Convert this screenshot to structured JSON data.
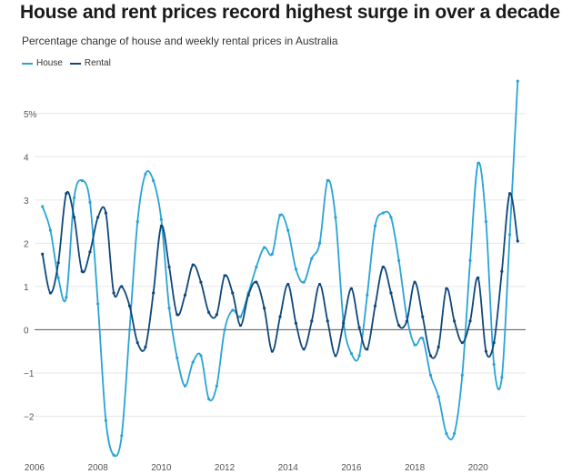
{
  "chart_data": {
    "type": "line",
    "title": "House and rent prices record highest surge in over a decade",
    "subtitle": "Percentage change of house and weekly rental prices in Australia",
    "xlabel": "",
    "ylabel": "",
    "xlim": [
      2006,
      2021.5
    ],
    "ylim": [
      -3,
      5.9
    ],
    "grid": true,
    "legend_position": "top-left",
    "y_ticks": [
      -2,
      -1,
      0,
      1,
      2,
      3,
      4,
      5
    ],
    "y_tick_labels": [
      "−2",
      "−1",
      "0",
      "1",
      "2",
      "3",
      "4",
      "5%"
    ],
    "x_ticks": [
      2006,
      2008,
      2010,
      2012,
      2014,
      2016,
      2018,
      2020
    ],
    "x_tick_labels": [
      "2006",
      "2008",
      "2010",
      "2012",
      "2014",
      "2016",
      "2018",
      "2020"
    ],
    "colors": {
      "house": "#2aa3d6",
      "rental": "#10487a",
      "zero": "#555555",
      "grid": "#e6e6e6"
    },
    "series": [
      {
        "name": "House",
        "x": [
          2006.25,
          2006.5,
          2006.75,
          2007.0,
          2007.25,
          2007.5,
          2007.75,
          2008.0,
          2008.25,
          2008.5,
          2008.75,
          2009.0,
          2009.25,
          2009.5,
          2009.75,
          2010.0,
          2010.25,
          2010.5,
          2010.75,
          2011.0,
          2011.25,
          2011.5,
          2011.75,
          2012.0,
          2012.25,
          2012.5,
          2012.75,
          2013.0,
          2013.25,
          2013.5,
          2013.75,
          2014.0,
          2014.25,
          2014.5,
          2014.75,
          2015.0,
          2015.25,
          2015.5,
          2015.75,
          2016.0,
          2016.25,
          2016.5,
          2016.75,
          2017.0,
          2017.25,
          2017.5,
          2017.75,
          2018.0,
          2018.25,
          2018.5,
          2018.75,
          2019.0,
          2019.25,
          2019.5,
          2019.75,
          2020.0,
          2020.25,
          2020.5,
          2020.75,
          2021.0,
          2021.25
        ],
        "values": [
          2.85,
          2.3,
          1.2,
          0.75,
          3.05,
          3.45,
          2.95,
          0.6,
          -2.1,
          -2.9,
          -2.45,
          0.0,
          2.5,
          3.6,
          3.45,
          2.55,
          0.5,
          -0.65,
          -1.3,
          -0.75,
          -0.6,
          -1.6,
          -1.3,
          0.0,
          0.45,
          0.3,
          0.85,
          1.45,
          1.9,
          1.75,
          2.65,
          2.3,
          1.4,
          1.1,
          1.65,
          2.0,
          3.45,
          2.6,
          0.2,
          -0.55,
          -0.6,
          0.8,
          2.4,
          2.7,
          2.6,
          1.6,
          0.3,
          -0.35,
          -0.2,
          -1.05,
          -1.55,
          -2.4,
          -2.4,
          -1.05,
          1.6,
          3.85,
          2.5,
          -0.8,
          -1.1,
          2.2,
          5.75
        ]
      },
      {
        "name": "Rental",
        "x": [
          2006.25,
          2006.5,
          2006.75,
          2007.0,
          2007.25,
          2007.5,
          2007.75,
          2008.0,
          2008.25,
          2008.5,
          2008.75,
          2009.0,
          2009.25,
          2009.5,
          2009.75,
          2010.0,
          2010.25,
          2010.5,
          2010.75,
          2011.0,
          2011.25,
          2011.5,
          2011.75,
          2012.0,
          2012.25,
          2012.5,
          2012.75,
          2013.0,
          2013.25,
          2013.5,
          2013.75,
          2014.0,
          2014.25,
          2014.5,
          2014.75,
          2015.0,
          2015.25,
          2015.5,
          2015.75,
          2016.0,
          2016.25,
          2016.5,
          2016.75,
          2017.0,
          2017.25,
          2017.5,
          2017.75,
          2018.0,
          2018.25,
          2018.5,
          2018.75,
          2019.0,
          2019.25,
          2019.5,
          2019.75,
          2020.0,
          2020.25,
          2020.5,
          2020.75,
          2021.0,
          2021.25
        ],
        "values": [
          1.75,
          0.85,
          1.55,
          3.15,
          2.6,
          1.35,
          1.8,
          2.6,
          2.7,
          0.85,
          1.0,
          0.55,
          -0.3,
          -0.4,
          0.85,
          2.4,
          1.45,
          0.35,
          0.8,
          1.5,
          1.1,
          0.4,
          0.35,
          1.25,
          0.85,
          0.1,
          0.8,
          1.1,
          0.5,
          -0.5,
          0.3,
          1.05,
          0.15,
          -0.45,
          0.2,
          1.05,
          0.2,
          -0.6,
          0.15,
          0.95,
          0.05,
          -0.45,
          0.55,
          1.45,
          0.85,
          0.1,
          0.2,
          1.1,
          0.3,
          -0.6,
          -0.4,
          0.95,
          0.2,
          -0.3,
          0.2,
          1.2,
          -0.5,
          -0.3,
          1.35,
          3.15,
          2.05
        ]
      }
    ]
  }
}
